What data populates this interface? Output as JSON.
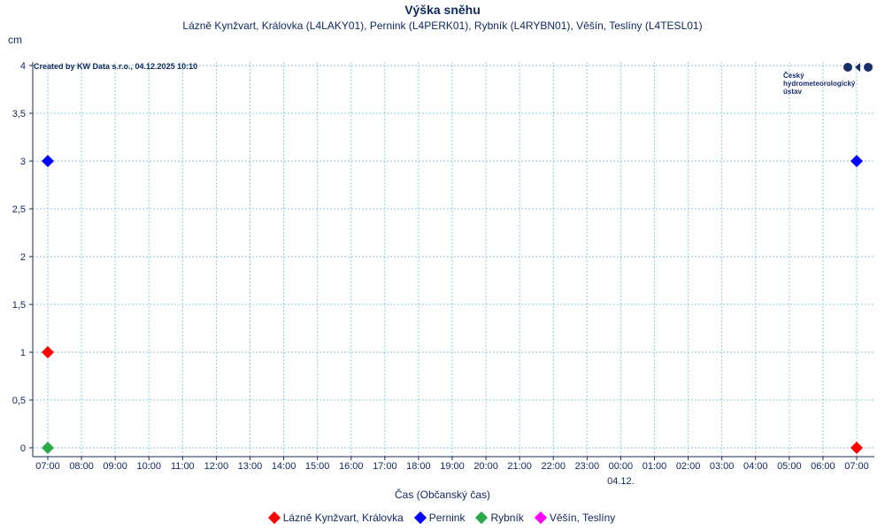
{
  "chart_data": {
    "type": "scatter",
    "title": "Výška sněhu",
    "subtitle": "Lázně Kynžvart, Královka (L4LAKY01), Pernink (L4PERK01), Rybník (L4RYBN01), Věšín, Teslíny (L4TESL01)",
    "ylabel": "cm",
    "xlabel": "Čas (Občanský čas)",
    "ylim": [
      0,
      4.05
    ],
    "yticks": [
      0,
      0.5,
      1,
      1.5,
      2,
      2.5,
      3,
      3.5,
      4
    ],
    "ytick_labels": [
      "0",
      "0,5",
      "1",
      "1,5",
      "2",
      "2,5",
      "3",
      "3,5",
      "4"
    ],
    "x_categories": [
      "07:00",
      "08:00",
      "09:00",
      "10:00",
      "11:00",
      "12:00",
      "13:00",
      "14:00",
      "15:00",
      "16:00",
      "17:00",
      "18:00",
      "19:00",
      "20:00",
      "21:00",
      "22:00",
      "23:00",
      "00:00",
      "01:00",
      "02:00",
      "03:00",
      "04:00",
      "05:00",
      "06:00",
      "07:00"
    ],
    "date_label": "04.12.",
    "date_label_at": "00:00",
    "grid": true,
    "legend_position": "bottom",
    "series": [
      {
        "name": "Lázně Kynžvart, Královka",
        "color": "#ff0000",
        "points": [
          {
            "x": "07:00",
            "y": 1
          },
          {
            "x": "07:00 (04.12.)",
            "y": 0
          }
        ]
      },
      {
        "name": "Pernink",
        "color": "#0000ff",
        "points": [
          {
            "x": "07:00",
            "y": 3
          },
          {
            "x": "07:00 (04.12.)",
            "y": 3
          }
        ]
      },
      {
        "name": "Rybník",
        "color": "#2aa84a",
        "points": [
          {
            "x": "07:00",
            "y": 0
          }
        ]
      },
      {
        "name": "Věšín, Teslíny",
        "color": "#ff00ff",
        "points": []
      }
    ]
  },
  "annotation": "Created by KW Data s.r.o., 04.12.2025 10:10",
  "logo": {
    "line1": "Český",
    "line2": "hydrometeorologický",
    "line3": "ústav",
    "color": "#1a2d6b"
  }
}
